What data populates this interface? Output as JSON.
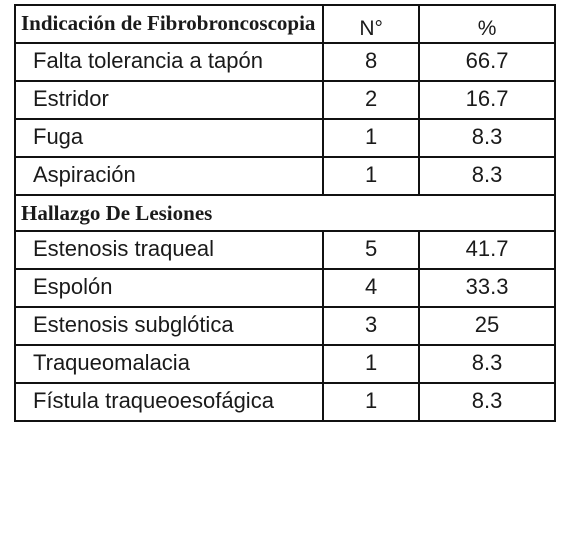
{
  "table": {
    "header": {
      "indicacion": "Indicación de Fibrobroncoscopia",
      "n": "N°",
      "pct": "%"
    },
    "indicaciones": [
      {
        "label": "Falta tolerancia a tapón",
        "n": "8",
        "pct": "66.7"
      },
      {
        "label": "Estridor",
        "n": "2",
        "pct": "16.7"
      },
      {
        "label": "Fuga",
        "n": "1",
        "pct": "8.3"
      },
      {
        "label": "Aspiración",
        "n": "1",
        "pct": "8.3"
      }
    ],
    "section2_title": "Hallazgo De Lesiones",
    "hallazgos": [
      {
        "label": "Estenosis traqueal",
        "n": "5",
        "pct": "41.7"
      },
      {
        "label": "Espolón",
        "n": "4",
        "pct": "33.3"
      },
      {
        "label": "Estenosis subglótica",
        "n": "3",
        "pct": "25"
      },
      {
        "label": "Traqueomalacia",
        "n": "1",
        "pct": "8.3"
      },
      {
        "label": "Fístula traqueoesofágica",
        "n": "1",
        "pct": "8.3"
      }
    ]
  }
}
